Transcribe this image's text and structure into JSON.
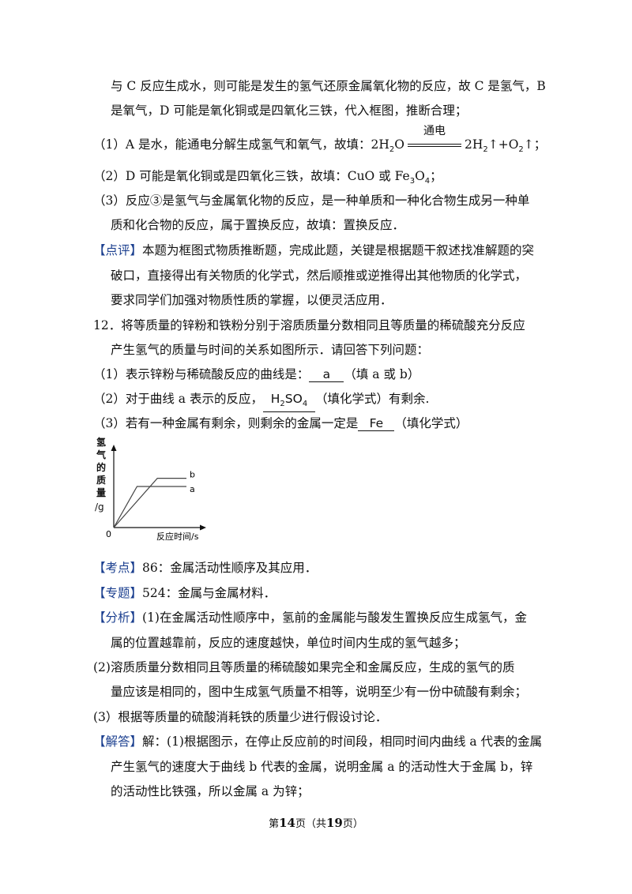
{
  "lines": {
    "l1": "与 C 反应生成水，则可能是发生的氢气还原金属氧化物的反应，故 C 是氢气，B",
    "l2": "是氧气，D 可能是氧化铜或是四氧化三铁，代入框图，推断合理；",
    "l3_pre": "（1）A 是水，能通电分解生成氢气和氧气，故填：2H",
    "l3_o": "O",
    "l3_cond": "通电",
    "l3_post1": "2H",
    "l3_post2": "↑+O",
    "l3_post3": "↑；",
    "l4": "（2）D 可能是氧化铜或是四氧化三铁，故填：CuO 或 Fe",
    "l4_o": "O",
    "l4_end": "；",
    "l5": "（3）反应③是氢气与金属氧化物的反应，是一种单质和一种化合物生成另一种单",
    "l6": "质和化合物的反应，属于置换反应，故填：置换反应．",
    "l7_tag": "【点评】",
    "l7": "本题为框图式物质推断题，完成此题，关键是根据题干叙述找准解题的突",
    "l8": "破口，直接得出有关物质的化学式，然后顺推或逆推得出其他物质的化学式，",
    "l9": "要求同学们加强对物质性质的掌握，以便灵活应用．",
    "q12a": "12．将等质量的锌粉和铁粉分别于溶质质量分数相同且等质量的稀硫酸充分反应",
    "q12b": "产生氢气的质量与时间的关系如图所示．请回答下列问题：",
    "q1_pre": "（1）表示锌粉与稀硫酸反应的曲线是：",
    "q1_ans": "a",
    "q1_post": "（填 a 或 b）",
    "q2_pre": "（2）对于曲线 a 表示的反应，",
    "q2_ans": "H",
    "q2_ans2": "SO",
    "q2_post": "（填化学式）有剩余.",
    "q3_pre": "（3）若有一种金属有剩余，则剩余的金属一定是",
    "q3_ans": "Fe",
    "q3_post": "（填化学式）",
    "kd_tag": "【考点】",
    "kd": "86：金属活动性顺序及其应用．",
    "zt_tag": "【专题】",
    "zt": "524：金属与金属材料．",
    "fx_tag": "【分析】",
    "fx1": "(1)在金属活动性顺序中，氢前的金属能与酸发生置换反应生成氢气，金",
    "fx2": "属的位置越靠前，反应的速度越快，单位时间内生成的氢气越多；",
    "fx3": "(2)溶质质量分数相同且等质量的稀硫酸如果完全和金属反应，生成的氢气的质",
    "fx4": "量应该是相同的，图中生成氢气质量不相等，说明至少有一份中硫酸有剩余；",
    "fx5": "(3）根据等质量的硫酸消耗铁的质量少进行假设讨论．",
    "jd_tag": "【解答】",
    "jd1": "解：(1)根据图示，在停止反应前的时间段，相同时间内曲线 a 代表的金属",
    "jd2": "产生氢气的速度大于曲线 b 代表的金属，说明金属 a 的活动性大于金属 b，锌",
    "jd3": "的活动性比铁强，所以金属 a 为锌；"
  },
  "subs": {
    "two": "2",
    "three": "3",
    "four": "4"
  },
  "chart": {
    "ylabel": [
      "氢",
      "气",
      "的",
      "质",
      "量",
      "/g"
    ],
    "origin": "0",
    "xlabel": "反应时间/s",
    "label_a": "a",
    "label_b": "b"
  },
  "footer": {
    "pre": "第",
    "page": "14",
    "mid": "页（共",
    "total": "19",
    "post": "页）"
  },
  "colors": {
    "tag": "#1b3f8f"
  },
  "chart_data": {
    "type": "line",
    "xlabel": "反应时间/s",
    "ylabel": "氢气的质量/g",
    "series": [
      {
        "name": "a",
        "points": [
          [
            0,
            0
          ],
          [
            0.32,
            1.0
          ],
          [
            1,
            1.0
          ]
        ]
      },
      {
        "name": "b",
        "points": [
          [
            0,
            0
          ],
          [
            0.6,
            1.2
          ],
          [
            1,
            1.2
          ]
        ]
      }
    ]
  }
}
